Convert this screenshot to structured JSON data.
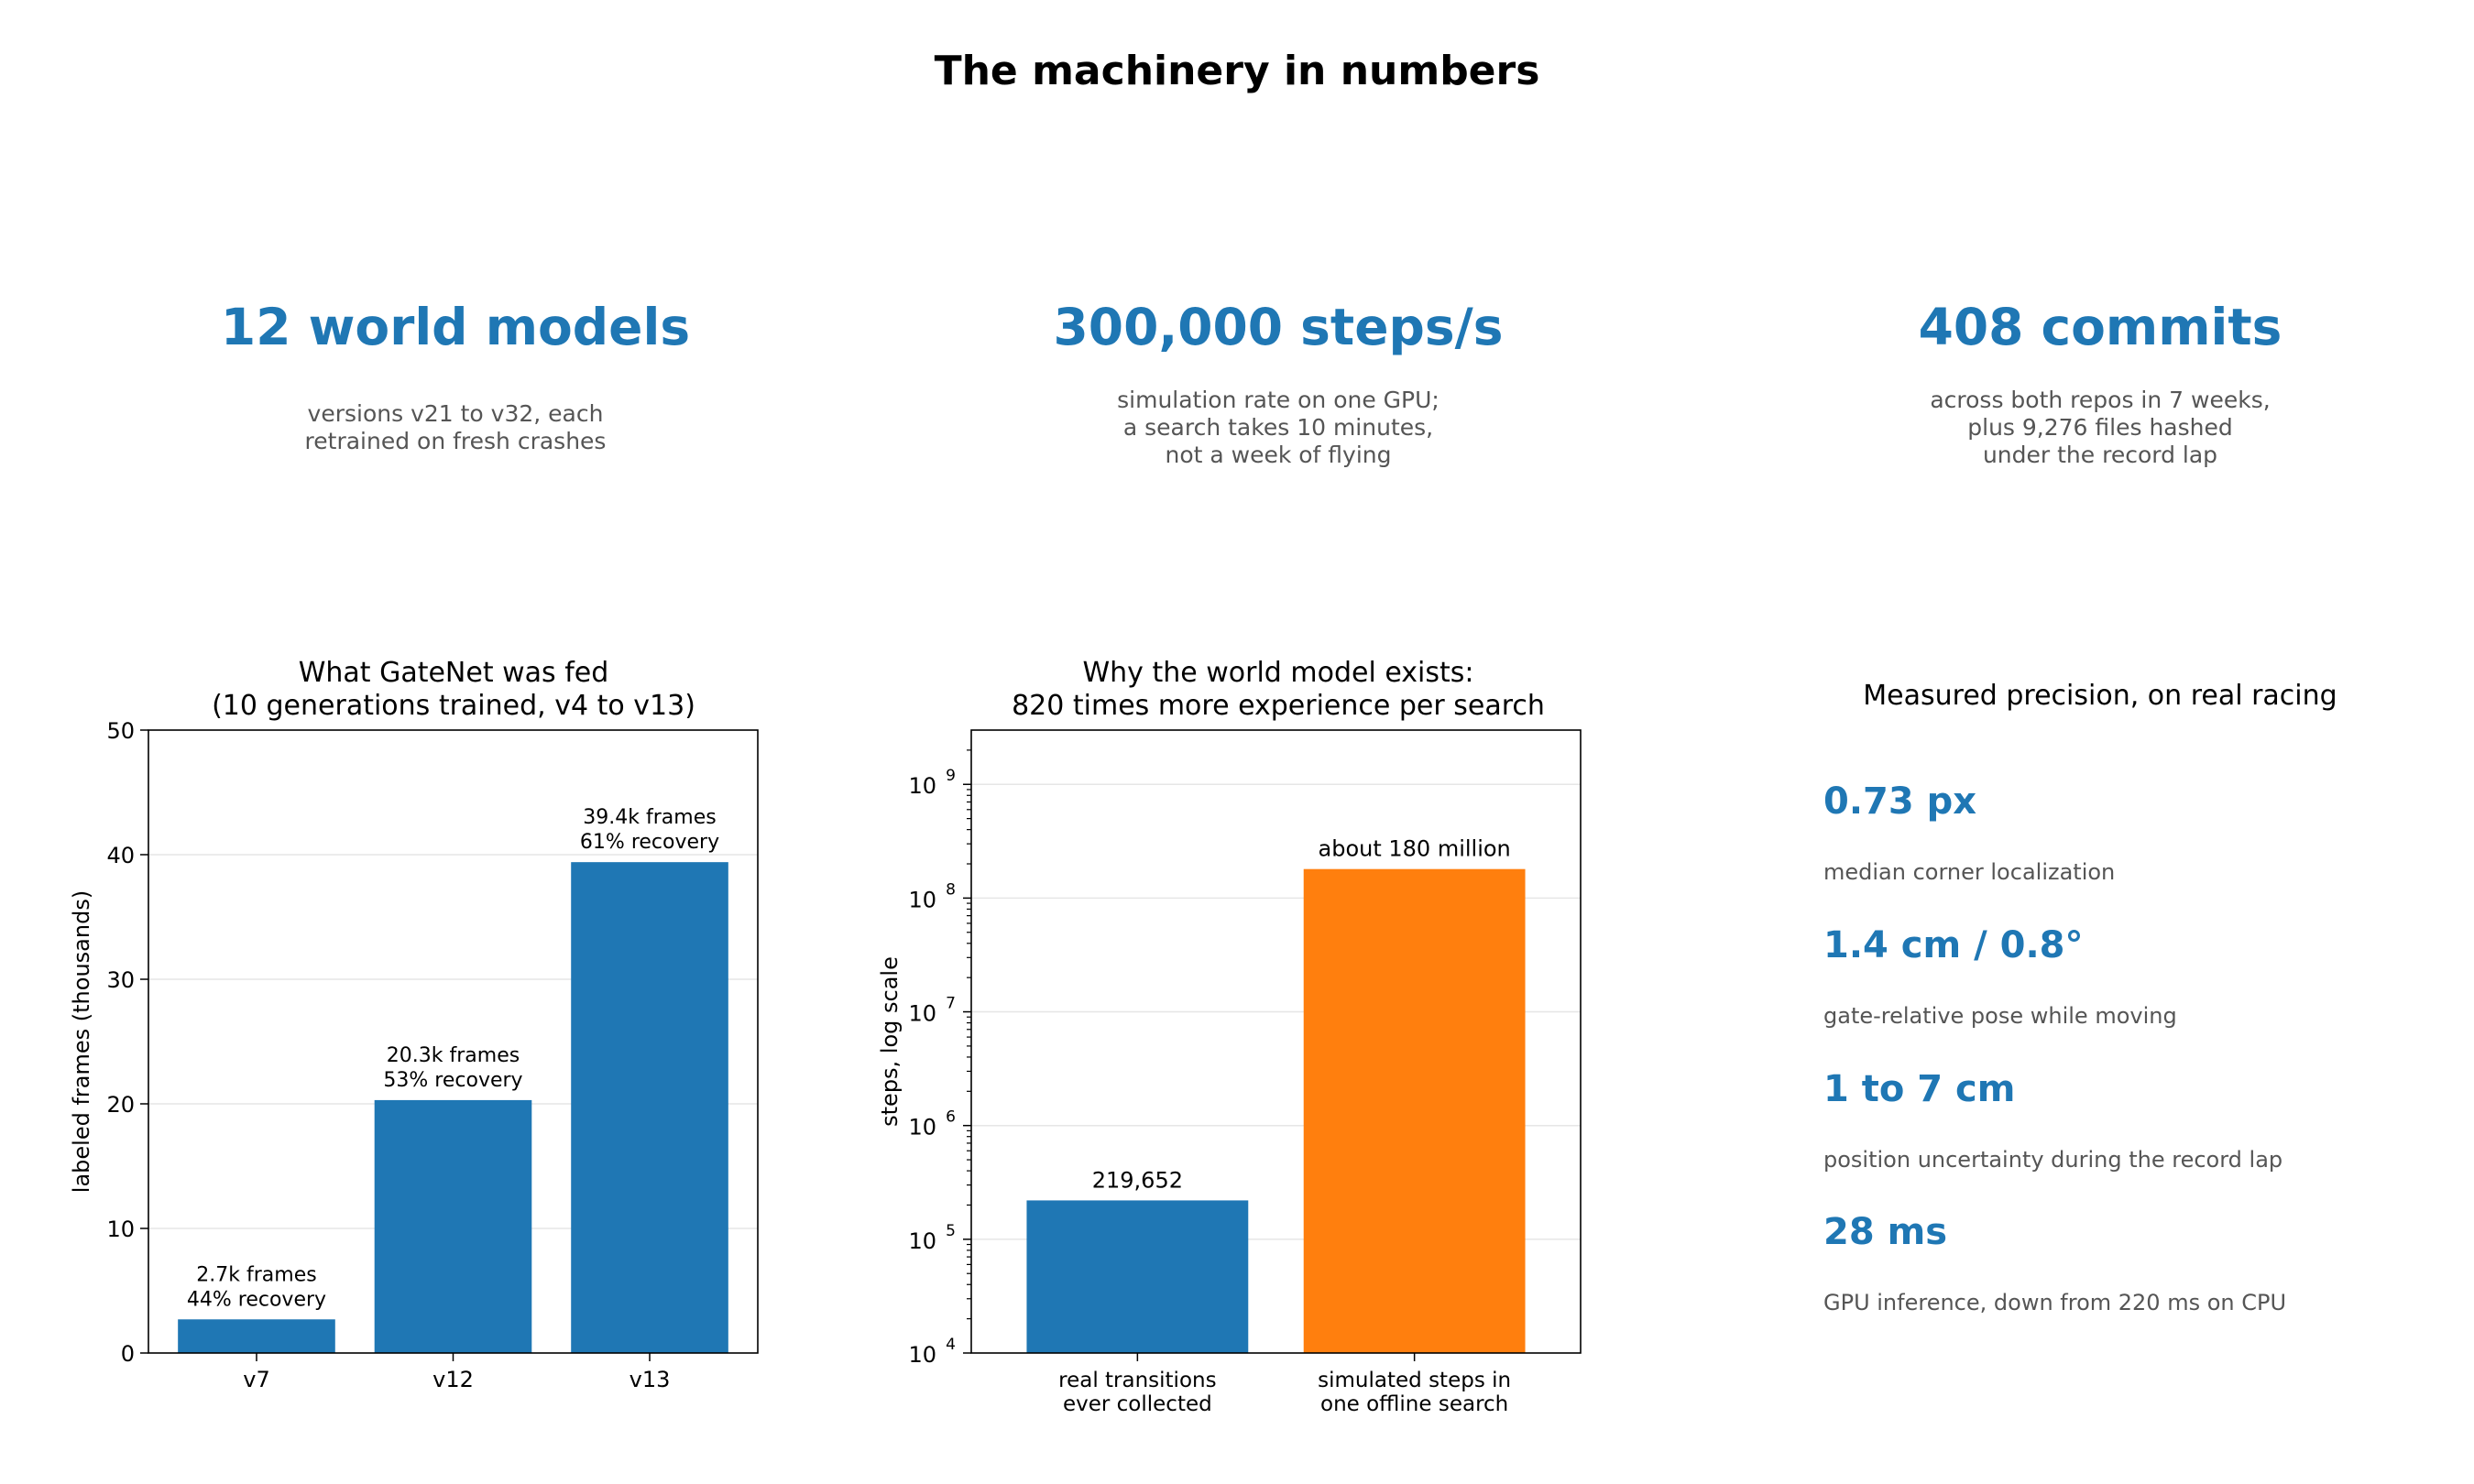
{
  "title": "The machinery in numbers",
  "stats": [
    {
      "value": "12 world models",
      "lines": [
        "versions v21 to v32, each",
        "retrained on fresh crashes"
      ]
    },
    {
      "value": "300,000 steps/s",
      "lines": [
        "simulation rate on one GPU;",
        "a search takes 10 minutes,",
        "not a week of flying"
      ]
    },
    {
      "value": "408 commits",
      "lines": [
        "across both repos in 7 weeks,",
        "plus 9,276 files hashed",
        "under the record lap"
      ]
    }
  ],
  "chart_data": [
    {
      "type": "bar",
      "title_lines": [
        "What GateNet was fed",
        "(10 generations trained, v4 to v13)"
      ],
      "categories": [
        "v7",
        "v12",
        "v13"
      ],
      "values": [
        2.7,
        20.3,
        39.4
      ],
      "bar_labels": [
        [
          "2.7k frames",
          "44% recovery"
        ],
        [
          "20.3k frames",
          "53% recovery"
        ],
        [
          "39.4k frames",
          "61% recovery"
        ]
      ],
      "xlabel": "",
      "ylabel": "labeled frames (thousands)",
      "ylim": [
        0,
        50
      ],
      "yticks": [
        0,
        10,
        20,
        30,
        40,
        50
      ],
      "grid": "y",
      "color": "#1f77b4"
    },
    {
      "type": "bar",
      "title_lines": [
        "Why the world model exists:",
        "820 times more experience per search"
      ],
      "categories": [
        [
          "real transitions",
          "ever collected"
        ],
        [
          "simulated steps in",
          "one offline search"
        ]
      ],
      "values": [
        219652,
        180000000
      ],
      "bar_labels": [
        "219,652",
        "about 180 million"
      ],
      "colors": [
        "#1f77b4",
        "#ff7f0e"
      ],
      "xlabel": "",
      "ylabel": "steps, log scale",
      "yscale": "log",
      "ylim": [
        10000,
        3000000000
      ],
      "ytick_exponents": [
        "4",
        "5",
        "6",
        "7",
        "8",
        "9"
      ],
      "ytick_base": "10",
      "grid": "y"
    }
  ],
  "precision": {
    "title": "Measured precision, on real racing",
    "items": [
      {
        "value": "0.73 px",
        "desc": "median corner localization"
      },
      {
        "value": "1.4 cm / 0.8°",
        "desc": "gate-relative pose while moving"
      },
      {
        "value": "1 to 7 cm",
        "desc": "position uncertainty during the record lap"
      },
      {
        "value": "28 ms",
        "desc": "GPU inference, down from 220 ms on CPU"
      }
    ]
  }
}
